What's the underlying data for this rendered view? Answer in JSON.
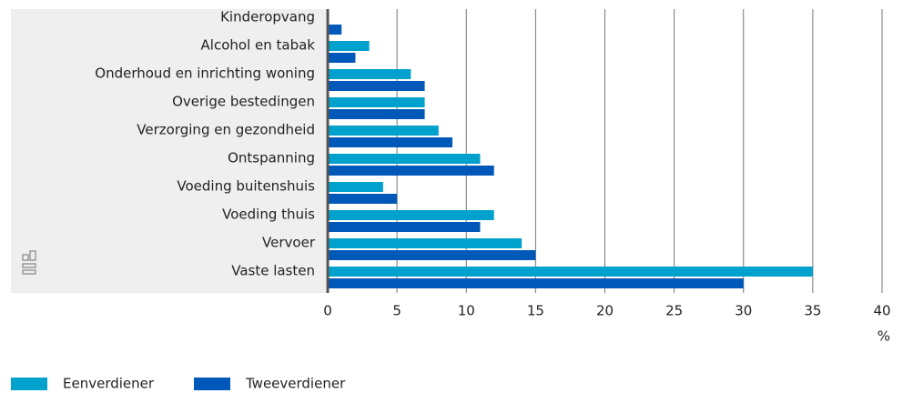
{
  "chart_data": {
    "type": "bar",
    "orientation": "horizontal",
    "categories": [
      "Kinderopvang",
      "Alcohol en tabak",
      "Onderhoud en inrichting woning",
      "Overige bestedingen",
      "Verzorging en gezondheid",
      "Ontspanning",
      "Voeding buitenshuis",
      "Voeding thuis",
      "Vervoer",
      "Vaste lasten"
    ],
    "series": [
      {
        "name": "Eenverdiener",
        "color": "#00a1cd",
        "values": [
          0,
          3,
          6,
          7,
          8,
          11,
          4,
          12,
          14,
          35
        ]
      },
      {
        "name": "Tweeverdiener",
        "color": "#0058b8",
        "values": [
          1,
          2,
          7,
          7,
          9,
          12,
          5,
          11,
          15,
          30
        ]
      }
    ],
    "xlabel": "%",
    "xlim": [
      0,
      40
    ],
    "xticks": [
      0,
      5,
      10,
      15,
      20,
      25,
      30,
      35,
      40
    ],
    "grid": true,
    "legend": "bottom-left"
  }
}
